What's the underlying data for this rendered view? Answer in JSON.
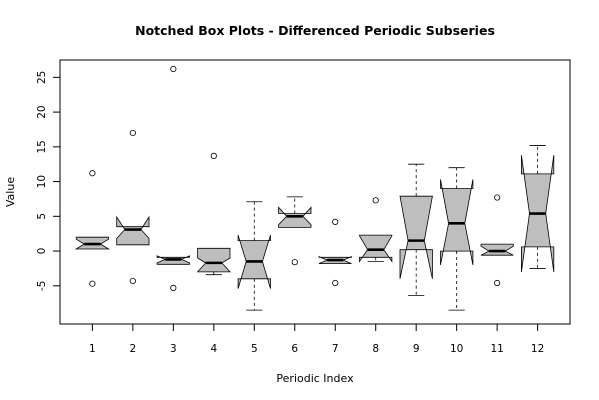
{
  "chart_data": {
    "type": "boxplot",
    "notched": true,
    "title": "Notched Box Plots - Differenced Periodic Subseries",
    "xlabel": "Periodic Index",
    "ylabel": "Value",
    "ylim": [
      -10.5,
      27.5
    ],
    "yticks": [
      -5,
      0,
      5,
      10,
      15,
      20,
      25
    ],
    "box_fill": "#bebebe",
    "boxes": [
      {
        "label": "1",
        "lower_whisker": 0.3,
        "q1": 0.3,
        "median": 1.0,
        "q3": 2.0,
        "upper_whisker": 2.0,
        "notch_low": 0.3,
        "notch_high": 1.7,
        "outliers": [
          11.2,
          -4.7
        ]
      },
      {
        "label": "2",
        "lower_whisker": 0.9,
        "q1": 0.9,
        "median": 3.1,
        "q3": 3.5,
        "upper_whisker": 3.5,
        "notch_low": 1.8,
        "notch_high": 4.9,
        "outliers": [
          17.0,
          -4.3
        ]
      },
      {
        "label": "3",
        "lower_whisker": -1.9,
        "q1": -1.9,
        "median": -1.2,
        "q3": -0.9,
        "upper_whisker": -0.9,
        "notch_low": -1.7,
        "notch_high": -0.7,
        "outliers": [
          26.2,
          -5.3
        ]
      },
      {
        "label": "4",
        "lower_whisker": -3.4,
        "q1": -3.0,
        "median": -1.7,
        "q3": 0.4,
        "upper_whisker": 0.4,
        "notch_low": -3.0,
        "notch_high": -1.0,
        "outliers": [
          13.7
        ]
      },
      {
        "label": "5",
        "lower_whisker": -8.5,
        "q1": -4.0,
        "median": -1.5,
        "q3": 1.5,
        "upper_whisker": 7.1,
        "notch_low": -5.4,
        "notch_high": 2.3,
        "outliers": []
      },
      {
        "label": "6",
        "lower_whisker": 3.4,
        "q1": 3.4,
        "median": 5.0,
        "q3": 5.4,
        "upper_whisker": 7.8,
        "notch_low": 3.8,
        "notch_high": 6.3,
        "outliers": [
          -1.6
        ]
      },
      {
        "label": "7",
        "lower_whisker": -1.8,
        "q1": -1.8,
        "median": -1.3,
        "q3": -0.9,
        "upper_whisker": -0.9,
        "notch_low": -1.8,
        "notch_high": -0.8,
        "outliers": [
          4.2,
          -4.6
        ]
      },
      {
        "label": "8",
        "lower_whisker": -1.5,
        "q1": -0.9,
        "median": 0.2,
        "q3": 2.3,
        "upper_whisker": 2.3,
        "notch_low": -1.5,
        "notch_high": 2.2,
        "outliers": [
          7.3
        ]
      },
      {
        "label": "9",
        "lower_whisker": -6.4,
        "q1": 0.2,
        "median": 1.5,
        "q3": 7.9,
        "upper_whisker": 12.5,
        "notch_low": -4.0,
        "notch_high": 7.9,
        "outliers": []
      },
      {
        "label": "10",
        "lower_whisker": -8.5,
        "q1": 0.0,
        "median": 4.0,
        "q3": 9.0,
        "upper_whisker": 12.0,
        "notch_low": -2.0,
        "notch_high": 10.3,
        "outliers": []
      },
      {
        "label": "11",
        "lower_whisker": -0.6,
        "q1": -0.6,
        "median": 0.0,
        "q3": 1.0,
        "upper_whisker": 1.0,
        "notch_low": -0.6,
        "notch_high": 0.7,
        "outliers": [
          7.7,
          -4.6
        ]
      },
      {
        "label": "12",
        "lower_whisker": -2.5,
        "q1": 0.6,
        "median": 5.4,
        "q3": 11.1,
        "upper_whisker": 15.2,
        "notch_low": -3.0,
        "notch_high": 13.8,
        "outliers": []
      }
    ]
  }
}
